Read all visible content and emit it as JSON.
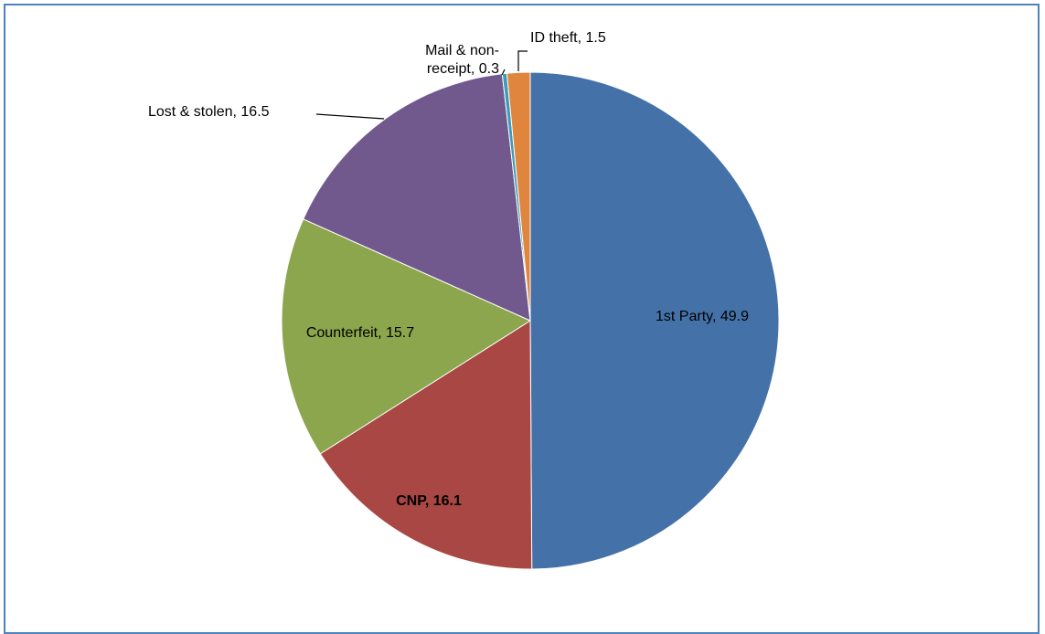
{
  "chart_data": {
    "type": "pie",
    "title": "",
    "start_angle_deg": 0,
    "direction": "clockwise",
    "slices": [
      {
        "label": "1st Party",
        "value": 49.9,
        "display": "1st Party, 49.9",
        "color": "#4472a8",
        "bold": false
      },
      {
        "label": "CNP",
        "value": 16.1,
        "display": "CNP, 16.1",
        "color": "#a94744",
        "bold": true
      },
      {
        "label": "Counterfeit",
        "value": 15.7,
        "display": "Counterfeit, 15.7",
        "color": "#8ba64d",
        "bold": false
      },
      {
        "label": "Lost & stolen",
        "value": 16.5,
        "display": "Lost & stolen, 16.5",
        "color": "#71598e",
        "bold": false
      },
      {
        "label": "Mail & non-receipt",
        "value": 0.3,
        "display_lines": [
          "Mail & non-",
          "receipt, 0.3"
        ],
        "color": "#3f9bb7",
        "bold": false
      },
      {
        "label": "ID theft",
        "value": 1.5,
        "display": "ID theft, 1.5",
        "color": "#e0853d",
        "bold": false
      }
    ],
    "legend": "none"
  }
}
